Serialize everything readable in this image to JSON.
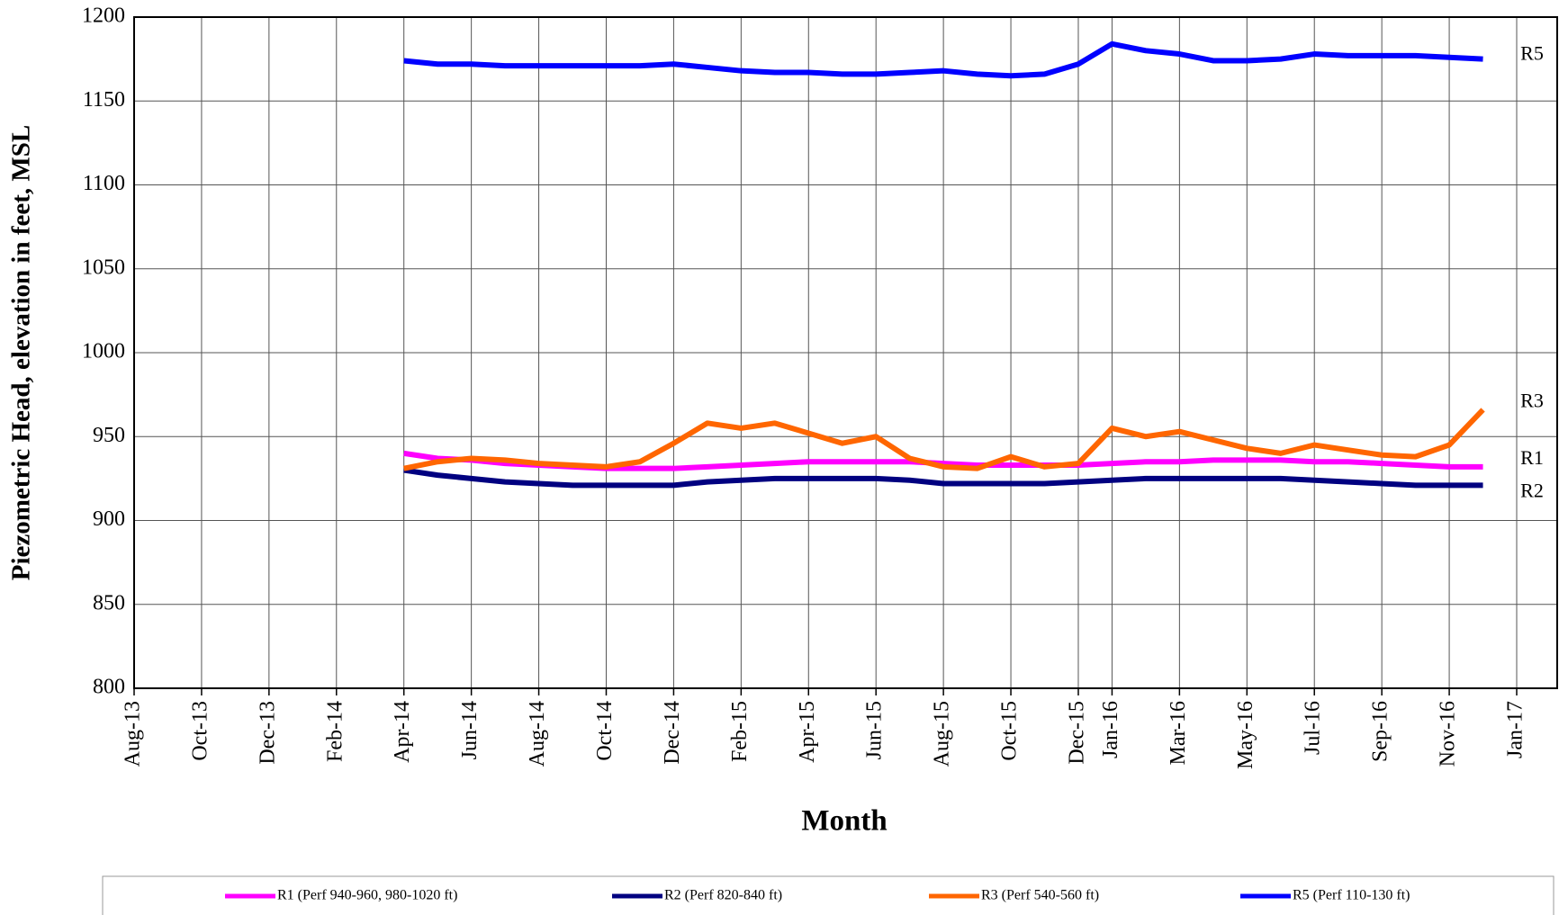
{
  "chart_data": {
    "type": "line",
    "x_label": "Month",
    "y_label": "Piezometric Head, elevation in feet, MSL",
    "x": [
      "2014-04",
      "2014-05",
      "2014-06",
      "2014-07",
      "2014-08",
      "2014-09",
      "2014-10",
      "2014-11",
      "2014-12",
      "2015-01",
      "2015-02",
      "2015-03",
      "2015-04",
      "2015-05",
      "2015-06",
      "2015-07",
      "2015-08",
      "2015-09",
      "2015-10",
      "2015-11",
      "2015-12",
      "2016-01",
      "2016-02",
      "2016-03",
      "2016-04",
      "2016-05",
      "2016-06",
      "2016-07",
      "2016-08",
      "2016-09",
      "2016-10",
      "2016-11",
      "2016-12"
    ],
    "series": [
      {
        "name": "R1 (Perf 940-960, 980-1020 ft)",
        "color": "#ff00ff",
        "annotation": "R1",
        "values": [
          940,
          937,
          936,
          934,
          933,
          932,
          931,
          931,
          931,
          932,
          933,
          934,
          935,
          935,
          935,
          935,
          934,
          933,
          933,
          933,
          933,
          934,
          935,
          935,
          936,
          936,
          936,
          935,
          935,
          934,
          933,
          932,
          932
        ]
      },
      {
        "name": "R2 (Perf 820-840 ft)",
        "color": "#000080",
        "annotation": "R2",
        "values": [
          930,
          927,
          925,
          923,
          922,
          921,
          921,
          921,
          921,
          923,
          924,
          925,
          925,
          925,
          925,
          924,
          922,
          922,
          922,
          922,
          923,
          924,
          925,
          925,
          925,
          925,
          925,
          924,
          923,
          922,
          921,
          921,
          921
        ]
      },
      {
        "name": "R3 (Perf 540-560 ft)",
        "color": "#ff6600",
        "annotation": "R3",
        "values": [
          931,
          935,
          937,
          936,
          934,
          933,
          932,
          935,
          946,
          958,
          955,
          958,
          952,
          946,
          950,
          937,
          932,
          931,
          938,
          932,
          934,
          955,
          950,
          953,
          948,
          943,
          940,
          945,
          942,
          939,
          938,
          945,
          966
        ]
      },
      {
        "name": "R5 (Perf 110-130 ft)",
        "color": "#0000ff",
        "annotation": "R5",
        "values": [
          1174,
          1172,
          1172,
          1171,
          1171,
          1171,
          1171,
          1171,
          1172,
          1170,
          1168,
          1167,
          1167,
          1166,
          1166,
          1167,
          1168,
          1166,
          1165,
          1166,
          1172,
          1184,
          1180,
          1178,
          1174,
          1174,
          1175,
          1178,
          1177,
          1177,
          1177,
          1176,
          1175
        ]
      }
    ],
    "ylim": [
      800,
      1200
    ],
    "yticks": [
      800,
      850,
      900,
      950,
      1000,
      1050,
      1100,
      1150,
      1200
    ],
    "xlim": [
      "2013-08",
      "2017-01"
    ],
    "xticks": [
      {
        "value": "2013-08",
        "label": "Aug-13"
      },
      {
        "value": "2013-10",
        "label": "Oct-13"
      },
      {
        "value": "2013-12",
        "label": "Dec-13"
      },
      {
        "value": "2014-02",
        "label": "Feb-14"
      },
      {
        "value": "2014-04",
        "label": "Apr-14"
      },
      {
        "value": "2014-06",
        "label": "Jun-14"
      },
      {
        "value": "2014-08",
        "label": "Aug-14"
      },
      {
        "value": "2014-10",
        "label": "Oct-14"
      },
      {
        "value": "2014-12",
        "label": "Dec-14"
      },
      {
        "value": "2015-02",
        "label": "Feb-15"
      },
      {
        "value": "2015-04",
        "label": "Apr-15"
      },
      {
        "value": "2015-06",
        "label": "Jun-15"
      },
      {
        "value": "2015-08",
        "label": "Aug-15"
      },
      {
        "value": "2015-10",
        "label": "Oct-15"
      },
      {
        "value": "2015-12",
        "label": "Dec-15"
      },
      {
        "value": "2016-01",
        "label": "Jan-16"
      },
      {
        "value": "2016-03",
        "label": "Mar-16"
      },
      {
        "value": "2016-05",
        "label": "May-16"
      },
      {
        "value": "2016-07",
        "label": "Jul-16"
      },
      {
        "value": "2016-09",
        "label": "Sep-16"
      },
      {
        "value": "2016-11",
        "label": "Nov-16"
      },
      {
        "value": "2017-01",
        "label": "Jan-17"
      }
    ],
    "grid": true,
    "legend": "bottom"
  }
}
